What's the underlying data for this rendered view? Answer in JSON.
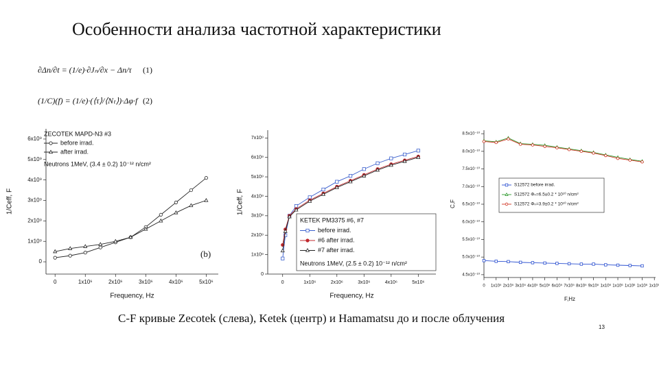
{
  "title": "Особенности анализа частотной характеристики",
  "formulas": [
    {
      "expression": "∂Δn/∂t = (1/e)·∂Jₙ/∂x − Δn/τ",
      "number": "(1)"
    },
    {
      "expression": "(1/C)(f) = (1/e)·(⟨τ⟩/⟨Nₜ⟩)·Δφ·f",
      "number": "(2)"
    }
  ],
  "caption": "C-F кривые Zecotek (слева), Ketek (центр) и Hamamatsu до и после облучения",
  "page_number": "13",
  "chart_data": [
    {
      "type": "line",
      "legend_title": "ZECOTEK MAPD-N3 #3",
      "annotations": [
        "Neutrons 1MeV, (3.4 ± 0.2) 10⁻¹² n/cm²",
        "(b)"
      ],
      "x_label": "Frequency, Hz",
      "y_label": "1/Ceff, F",
      "x": [
        0,
        500000,
        1000000,
        1500000,
        2000000,
        2500000,
        3000000,
        3500000,
        4000000,
        4500000,
        5000000
      ],
      "series": [
        {
          "name": "before irrad.",
          "color": "#222222",
          "marker": "circle",
          "filled": false,
          "values": [
            200000000.0,
            300000000.0,
            450000000.0,
            700000000.0,
            950000000.0,
            1200000000.0,
            1700000000.0,
            2300000000.0,
            2900000000.0,
            3500000000.0,
            4100000000.0
          ]
        },
        {
          "name": "after irrad.",
          "color": "#222222",
          "marker": "triangle",
          "filled": false,
          "values": [
            500000000.0,
            650000000.0,
            750000000.0,
            850000000.0,
            1000000000.0,
            1200000000.0,
            1600000000.0,
            2000000000.0,
            2400000000.0,
            2750000000.0,
            3000000000.0
          ]
        }
      ],
      "xlim": [
        -300000,
        5400000
      ],
      "ylim": [
        -600000000,
        6500000000
      ],
      "xticks": [
        0,
        {
          "value": 1000000,
          "label": "1x10⁶"
        },
        {
          "value": 2000000,
          "label": "2x10⁶"
        },
        {
          "value": 3000000,
          "label": "3x10⁶"
        },
        {
          "value": 4000000,
          "label": "4x10⁶"
        },
        {
          "value": 5000000,
          "label": "5x10⁶"
        }
      ],
      "yticks": [
        0,
        {
          "value": 1000000000,
          "label": "1x10⁹"
        },
        {
          "value": 2000000000,
          "label": "2x10⁹"
        },
        {
          "value": 3000000000,
          "label": "3x10⁹"
        },
        {
          "value": 4000000000,
          "label": "4x10⁹"
        },
        {
          "value": 5000000000,
          "label": "5x10⁹"
        },
        {
          "value": 6000000000,
          "label": "6x10⁹"
        }
      ]
    },
    {
      "type": "line",
      "legend_title": "KETEK PM3375 #6, #7",
      "annotations": [
        "Neutrons 1MeV, (2.5 ± 0.2) 10⁻¹² n/cm²"
      ],
      "x_label": "Frequency, Hz",
      "y_label": "1/Ceff, F",
      "x": [
        0,
        100000,
        250000,
        500000,
        1000000,
        1500000,
        2000000,
        2500000,
        3000000,
        3500000,
        4000000,
        4500000,
        5000000
      ],
      "series": [
        {
          "name": "before irrad.",
          "color": "#3a5fcd",
          "marker": "square",
          "filled": false,
          "values": [
            800000000.0,
            2000000000.0,
            3000000000.0,
            3500000000.0,
            3950000000.0,
            4350000000.0,
            4750000000.0,
            5050000000.0,
            5400000000.0,
            5700000000.0,
            5950000000.0,
            6150000000.0,
            6350000000.0
          ]
        },
        {
          "name": "#6 after irrad.",
          "color": "#c0282d",
          "marker": "circle",
          "filled": true,
          "values": [
            1500000000.0,
            2300000000.0,
            3000000000.0,
            3350000000.0,
            3800000000.0,
            4150000000.0,
            4500000000.0,
            4800000000.0,
            5100000000.0,
            5400000000.0,
            5650000000.0,
            5850000000.0,
            6050000000.0
          ]
        },
        {
          "name": "#7 after irrad.",
          "color": "#222222",
          "marker": "triangle",
          "filled": false,
          "values": [
            1200000000.0,
            2200000000.0,
            2950000000.0,
            3300000000.0,
            3750000000.0,
            4100000000.0,
            4450000000.0,
            4750000000.0,
            5050000000.0,
            5350000000.0,
            5600000000.0,
            5800000000.0,
            6000000000.0
          ]
        }
      ],
      "xlim": [
        -550000,
        5650000
      ],
      "ylim": [
        0,
        7400000000
      ],
      "xticks": [
        0,
        {
          "value": 1000000,
          "label": "1x10⁶"
        },
        {
          "value": 2000000,
          "label": "2x10⁶"
        },
        {
          "value": 3000000,
          "label": "3x10⁶"
        },
        {
          "value": 4000000,
          "label": "4x10⁶"
        },
        {
          "value": 5000000,
          "label": "5x10⁶"
        }
      ],
      "yticks": [
        0,
        {
          "value": 1000000000,
          "label": "1x10⁹"
        },
        {
          "value": 2000000000,
          "label": "2x10⁹"
        },
        {
          "value": 3000000000,
          "label": "3x10⁹"
        },
        {
          "value": 4000000000,
          "label": "4x10⁹"
        },
        {
          "value": 5000000000,
          "label": "5x10⁹"
        },
        {
          "value": 6000000000,
          "label": "6x10⁹"
        },
        {
          "value": 7000000000,
          "label": "7x10⁹"
        }
      ]
    },
    {
      "type": "line",
      "x_label": "F,Hz",
      "y_label": "C,F",
      "x": [
        0,
        100000,
        200000,
        300000,
        400000,
        500000,
        600000,
        700000,
        800000,
        900000,
        1000000,
        1100000,
        1200000,
        1300000
      ],
      "series": [
        {
          "name": "S12572 before irrad.",
          "color": "#2a4fd0",
          "marker": "square",
          "filled": false,
          "values": [
            4.9e-10,
            4.88e-10,
            4.87e-10,
            4.85e-10,
            4.84e-10,
            4.83e-10,
            4.82e-10,
            4.81e-10,
            4.8e-10,
            4.8e-10,
            4.78e-10,
            4.77e-10,
            4.76e-10,
            4.75e-10
          ]
        },
        {
          "name": "S12572 Φₙ=6.5±0.2 * 10¹⁰ n/cm²",
          "color": "#2e9a2e",
          "marker": "triangle",
          "filled": false,
          "values": [
            8.3e-10,
            8.27e-10,
            8.38e-10,
            8.22e-10,
            8.2e-10,
            8.17e-10,
            8.12e-10,
            8.07e-10,
            8.02e-10,
            7.97e-10,
            7.9e-10,
            7.83e-10,
            7.77e-10,
            7.72e-10
          ]
        },
        {
          "name": "S12572 Φₙ=3.9±0.2 * 10¹⁰ n/cm²",
          "color": "#d03020",
          "marker": "circle",
          "filled": false,
          "values": [
            8.28e-10,
            8.25e-10,
            8.35e-10,
            8.2e-10,
            8.18e-10,
            8.14e-10,
            8.1e-10,
            8.05e-10,
            8e-10,
            7.95e-10,
            7.88e-10,
            7.8e-10,
            7.75e-10,
            7.7e-10
          ]
        }
      ],
      "xlim": [
        0,
        1410000
      ],
      "ylim": [
        4.42e-10,
        8.6e-10
      ],
      "xticks": [
        0,
        {
          "value": 100000,
          "label": "1x10⁵"
        },
        {
          "value": 200000,
          "label": "2x10⁵"
        },
        {
          "value": 300000,
          "label": "3x10⁵"
        },
        {
          "value": 400000,
          "label": "4x10⁵"
        },
        {
          "value": 500000,
          "label": "5x10⁵"
        },
        {
          "value": 600000,
          "label": "6x10⁵"
        },
        {
          "value": 700000,
          "label": "7x10⁵"
        },
        {
          "value": 800000,
          "label": "8x10⁵"
        },
        {
          "value": 900000,
          "label": "9x10⁵"
        },
        {
          "value": 1000000,
          "label": "1x10⁶"
        },
        {
          "value": 1100000,
          "label": "1x10⁶"
        },
        {
          "value": 1200000,
          "label": "1x10⁶"
        },
        {
          "value": 1300000,
          "label": "1x10⁶"
        },
        {
          "value": 1400000,
          "label": "1x10⁶"
        }
      ],
      "yticks": [
        {
          "value": 4.5e-10,
          "label": "4.5x10⁻¹⁰"
        },
        {
          "value": 5e-10,
          "label": "5.0x10⁻¹⁰"
        },
        {
          "value": 5.5e-10,
          "label": "5.5x10⁻¹⁰"
        },
        {
          "value": 6e-10,
          "label": "6.0x10⁻¹⁰"
        },
        {
          "value": 6.5e-10,
          "label": "6.5x10⁻¹⁰"
        },
        {
          "value": 7e-10,
          "label": "7.0x10⁻¹⁰"
        },
        {
          "value": 7.5e-10,
          "label": "7.5x10⁻¹⁰"
        },
        {
          "value": 8e-10,
          "label": "8.0x10⁻¹⁰"
        },
        {
          "value": 8.5e-10,
          "label": "8.5x10⁻¹⁰"
        }
      ]
    }
  ]
}
